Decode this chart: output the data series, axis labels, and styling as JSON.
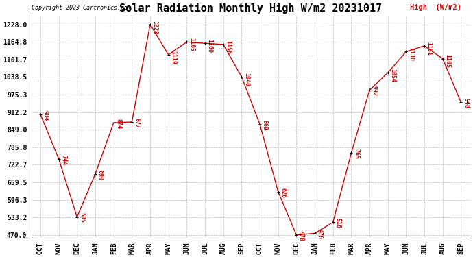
{
  "title": "Solar Radiation Monthly High W/m2 20231017",
  "copyright": "Copyright 2023 Cartronics.com",
  "legend_label": "High  (W/m2)",
  "months": [
    "OCT",
    "NOV",
    "DEC",
    "JAN",
    "FEB",
    "MAR",
    "APR",
    "MAY",
    "JUN",
    "JUL",
    "AUG",
    "SEP",
    "OCT",
    "NOV",
    "DEC",
    "JAN",
    "FEB",
    "MAR",
    "APR",
    "MAY",
    "JUN",
    "JUL",
    "AUG",
    "SEP"
  ],
  "vals": [
    904,
    744,
    535,
    690,
    874,
    877,
    1228,
    1119,
    1165,
    1160,
    1156,
    1040,
    869,
    626,
    470,
    476,
    516,
    765,
    992,
    1054,
    1130,
    1151,
    1105,
    948
  ],
  "y_ticks": [
    470.0,
    533.2,
    596.3,
    659.5,
    722.7,
    785.8,
    849.0,
    912.2,
    975.3,
    1038.5,
    1101.7,
    1164.8,
    1228.0
  ],
  "ylim_min": 460,
  "ylim_max": 1260,
  "line_color": "#cc0000",
  "marker_color": "#000000",
  "label_color": "#cc0000",
  "title_fontsize": 11,
  "copyright_fontsize": 6,
  "label_fontsize": 6,
  "tick_fontsize": 7,
  "legend_fontsize": 7.5,
  "background_color": "#ffffff",
  "grid_color": "#aaaaaa",
  "fig_width": 6.9,
  "fig_height": 3.75,
  "dpi": 100
}
